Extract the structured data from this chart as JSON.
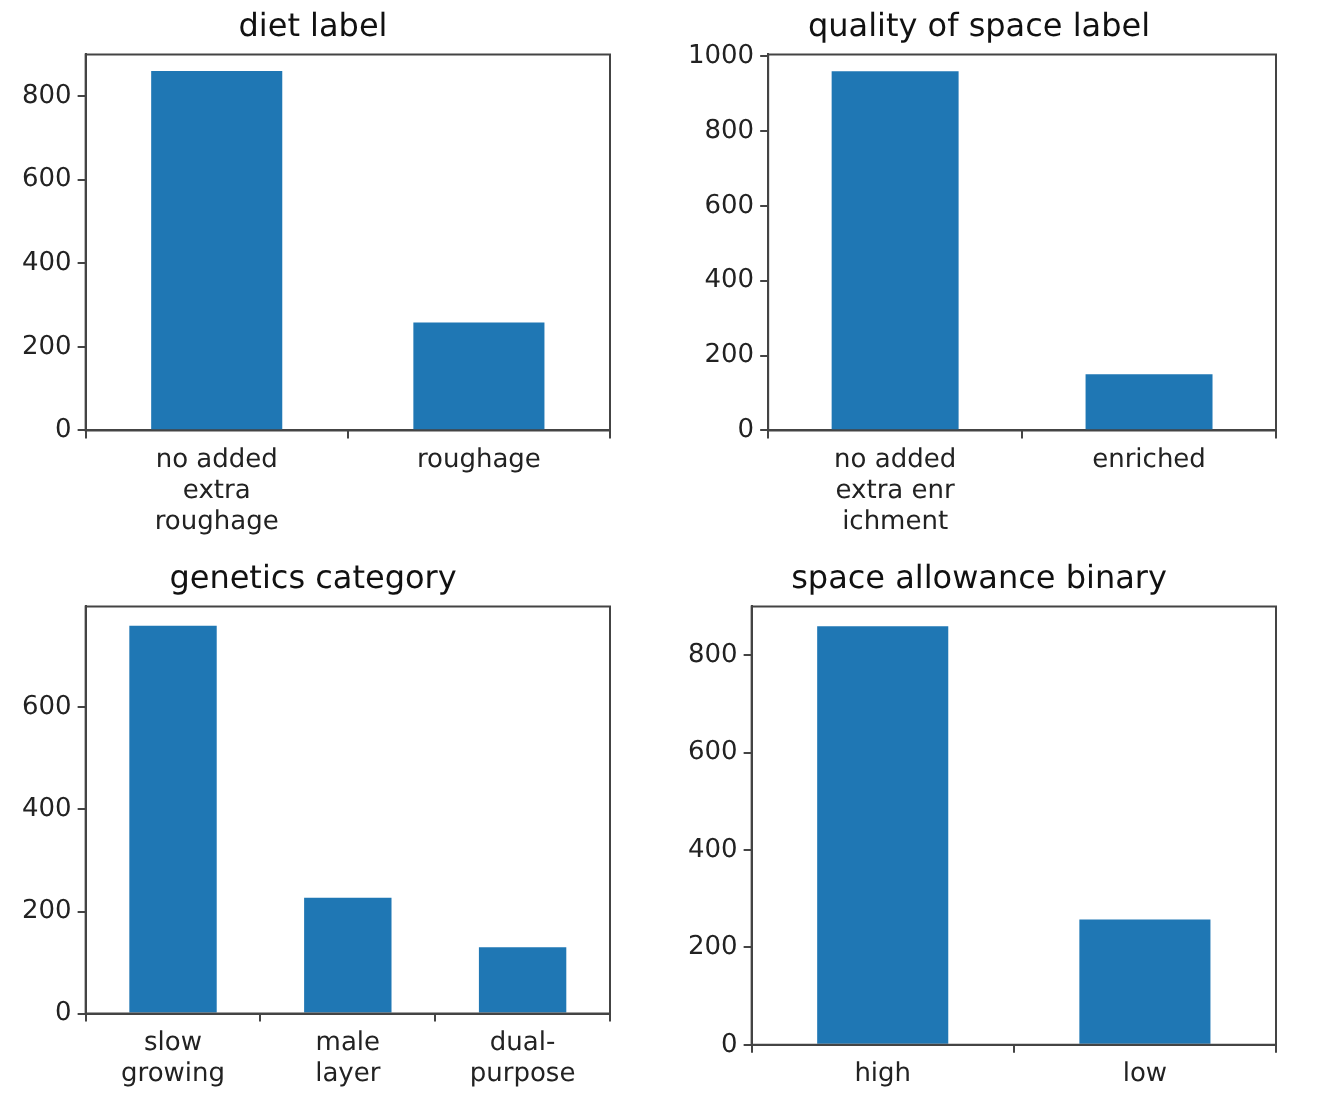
{
  "chart_data": [
    {
      "type": "bar",
      "title": "diet label",
      "categories": [
        "no added\nextra\nroughage",
        "roughage"
      ],
      "values": [
        860,
        258
      ],
      "color": "#1f77b4",
      "ylim": [
        0,
        900
      ],
      "yticks": [
        0,
        200,
        400,
        600,
        800
      ]
    },
    {
      "type": "bar",
      "title": "quality of space label",
      "categories": [
        "no added\nextra enr\nichment",
        "enriched"
      ],
      "values": [
        960,
        150
      ],
      "color": "#1f77b4",
      "ylim": [
        0,
        1005
      ],
      "yticks": [
        0,
        200,
        400,
        600,
        800,
        1000
      ]
    },
    {
      "type": "bar",
      "title": "genetics category",
      "categories": [
        "slow\ngrowing",
        "male\nlayer",
        "dual-\npurpose"
      ],
      "values": [
        760,
        227,
        130
      ],
      "color": "#1f77b4",
      "ylim": [
        0,
        798
      ],
      "yticks": [
        0,
        200,
        400,
        600
      ]
    },
    {
      "type": "bar",
      "title": "space allowance binary",
      "categories": [
        "high",
        "low"
      ],
      "values": [
        859,
        257
      ],
      "color": "#1f77b4",
      "ylim": [
        0,
        900
      ],
      "yticks": [
        0,
        200,
        400,
        600,
        800
      ]
    }
  ]
}
